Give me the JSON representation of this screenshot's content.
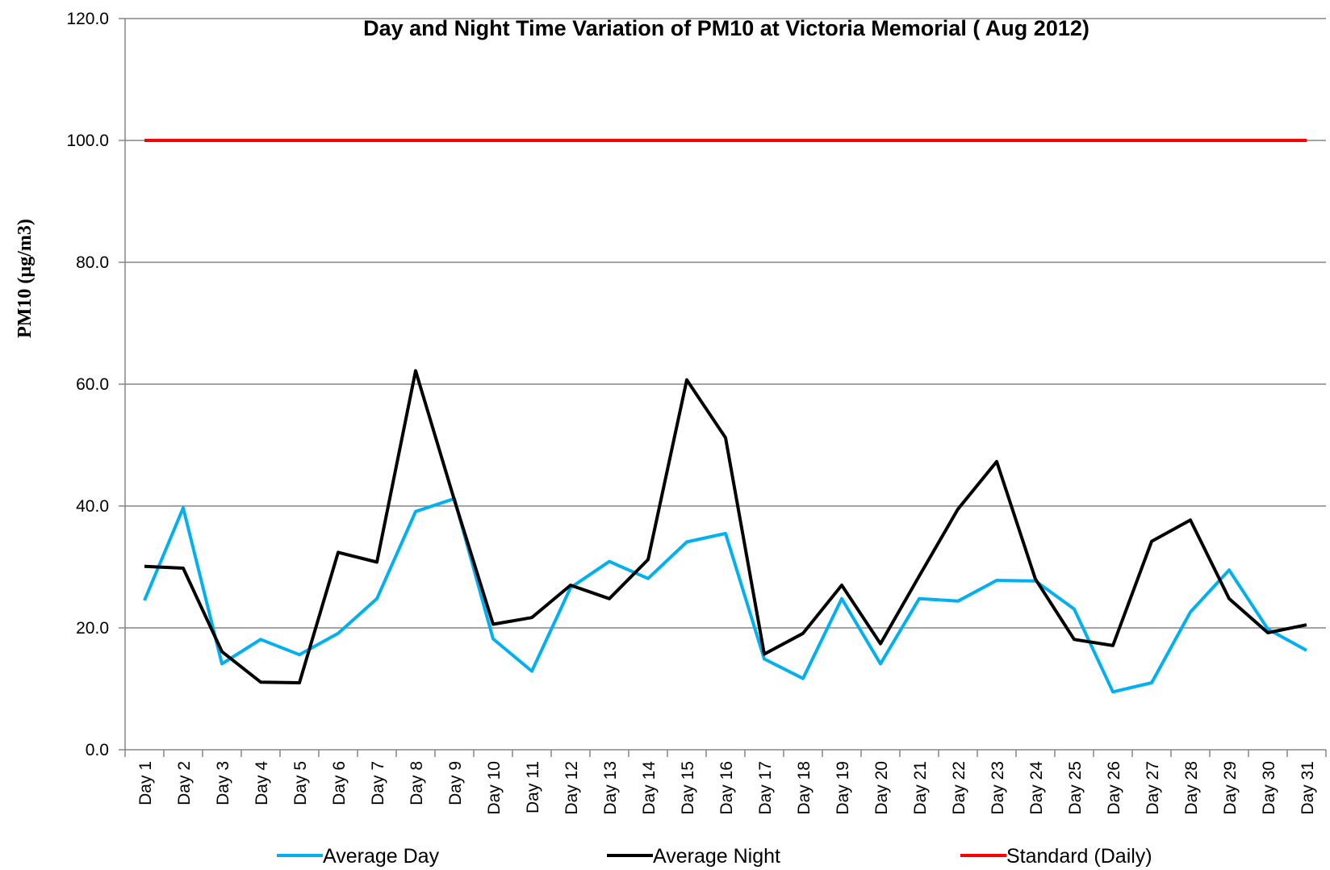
{
  "chart_data": {
    "type": "line",
    "title": "Day and Night Time Variation of PM10 at Victoria Memorial ( Aug 2012)",
    "y_label": "PM10 (µg/m3)",
    "categories": [
      "Day 1",
      "Day 2",
      "Day 3",
      "Day 4",
      "Day 5",
      "Day 6",
      "Day 7",
      "Day 8",
      "Day 9",
      "Day 10",
      "Day 11",
      "Day 12",
      "Day 13",
      "Day 14",
      "Day 15",
      "Day 16",
      "Day 17",
      "Day 18",
      "Day 19",
      "Day 20",
      "Day 21",
      "Day 22",
      "Day 23",
      "Day 24",
      "Day 25",
      "Day 26",
      "Day 27",
      "Day 28",
      "Day 29",
      "Day 30",
      "Day 31"
    ],
    "series": [
      {
        "name": "Average Day",
        "color": "#00b0f0",
        "values": [
          24.5,
          39.7,
          14.1,
          18.1,
          15.6,
          19.1,
          24.8,
          39.1,
          41.2,
          18.2,
          12.9,
          26.6,
          30.9,
          28.1,
          34.1,
          35.5,
          14.9,
          11.7,
          24.8,
          14.1,
          24.8,
          24.4,
          27.8,
          27.7,
          23.1,
          9.5,
          11.0,
          22.6,
          29.5,
          19.8,
          16.3
        ]
      },
      {
        "name": "Average Night",
        "color": "#000000",
        "values": [
          30.1,
          29.8,
          16.1,
          11.1,
          11.0,
          32.4,
          30.8,
          62.2,
          41.0,
          20.6,
          21.7,
          27.0,
          24.8,
          31.2,
          60.7,
          51.2,
          15.7,
          19.1,
          27.0,
          17.4,
          28.5,
          39.5,
          47.3,
          28.0,
          18.1,
          17.1,
          34.2,
          37.7,
          24.8,
          19.2,
          20.5
        ]
      },
      {
        "name": "Standard (Daily)",
        "color": "#ff0000",
        "values": [
          100,
          100,
          100,
          100,
          100,
          100,
          100,
          100,
          100,
          100,
          100,
          100,
          100,
          100,
          100,
          100,
          100,
          100,
          100,
          100,
          100,
          100,
          100,
          100,
          100,
          100,
          100,
          100,
          100,
          100,
          100
        ]
      }
    ],
    "ylim": [
      0,
      120
    ],
    "yticks": [
      {
        "value": 0,
        "label": "0.0"
      },
      {
        "value": 20,
        "label": "20.0"
      },
      {
        "value": 40,
        "label": "40.0"
      },
      {
        "value": 60,
        "label": "60.0"
      },
      {
        "value": 80,
        "label": "80.0"
      },
      {
        "value": 100,
        "label": "100.0"
      },
      {
        "value": 120,
        "label": "120.0"
      }
    ],
    "grid": true,
    "legend": "bottom"
  }
}
